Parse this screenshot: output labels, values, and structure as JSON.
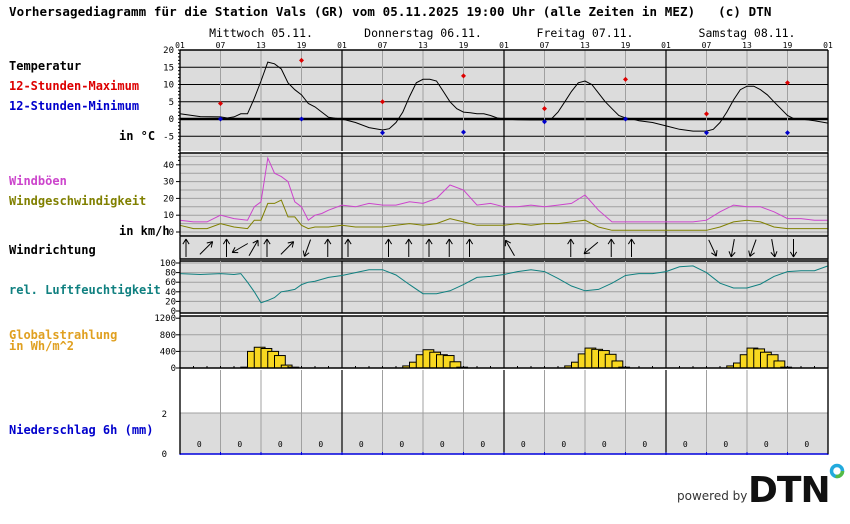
{
  "header": {
    "title": "Vorhersagediagramm für die Station Vals (GR) vom 05.11.2025 19:00 Uhr (alle Zeiten in MEZ)   (c) DTN"
  },
  "days": [
    {
      "label": "Mittwoch 05.11."
    },
    {
      "label": "Donnerstag 06.11."
    },
    {
      "label": "Freitag 07.11."
    },
    {
      "label": "Samstag 08.11."
    }
  ],
  "hour_ticks": [
    "01",
    "07",
    "13",
    "19",
    "01",
    "07",
    "13",
    "19",
    "01",
    "07",
    "13",
    "19",
    "01",
    "07",
    "13",
    "19",
    "01"
  ],
  "labels": {
    "temperature": "Temperatur",
    "max": "12-Stunden-Maximum",
    "min": "12-Stunden-Minimum",
    "temp_unit": "in °C",
    "gusts": "Windböen",
    "wind_speed": "Windgeschwindigkeit",
    "wind_unit": "in km/h",
    "wind_dir": "Windrichtung",
    "humidity": "rel. Luftfeuchtigkeit",
    "radiation": "Globalstrahlung\nin Wh/m^2",
    "precip": "Niederschlag 6h (mm)"
  },
  "colors": {
    "panel_bg": "#dcdcdc",
    "grid_day": "#000000",
    "grid_6h": "#a0a0a0",
    "temp_line": "#000000",
    "max_marker": "#dd0000",
    "min_marker": "#0000cc",
    "gust_line": "#cc44cc",
    "wind_line": "#808000",
    "humidity_line": "#108080",
    "radiation_bar": "#f8d820",
    "precip_axis": "#0000dd",
    "label_temp": "#000000",
    "label_max": "#dd0000",
    "label_min": "#0000cc",
    "label_gust": "#cc44cc",
    "label_wind": "#808000",
    "label_hum": "#108080",
    "label_rad": "#e0a020",
    "label_precip": "#0000cc"
  },
  "footer": {
    "powered_by": "powered by",
    "logo_text": "DTN"
  },
  "chart_data": [
    {
      "type": "line",
      "title": "Temperatur",
      "ylabel": "in °C",
      "ylim": [
        -10,
        20
      ],
      "yticks": [
        20,
        15,
        10,
        5,
        0,
        -5
      ],
      "x_hours_from_start": [
        0,
        3,
        6,
        7,
        8,
        9,
        10,
        11,
        12,
        13,
        14,
        15,
        16,
        17,
        18,
        19,
        20,
        21,
        22,
        23,
        24,
        26,
        28,
        30,
        31,
        32,
        33,
        34,
        35,
        36,
        37,
        38,
        39,
        40,
        41,
        42,
        43,
        44,
        45,
        46,
        47,
        48,
        50,
        52,
        54,
        55,
        56,
        57,
        58,
        59,
        60,
        61,
        62,
        63,
        64,
        65,
        66,
        67,
        68,
        70,
        72,
        74,
        76,
        78,
        79,
        80,
        81,
        82,
        83,
        84,
        85,
        86,
        87,
        88,
        89,
        90,
        91,
        92,
        94,
        96
      ],
      "series": [
        {
          "name": "Temperatur",
          "values": [
            1.5,
            0.7,
            0.6,
            0.3,
            0.6,
            1.5,
            1.5,
            6,
            11,
            16.5,
            16,
            14.5,
            10.5,
            8.5,
            7,
            4.5,
            3.5,
            2,
            0.5,
            0.2,
            0,
            -1,
            -2.5,
            -3.2,
            -2.8,
            -1,
            2,
            6.5,
            10.5,
            11.5,
            11.5,
            11,
            8,
            5,
            3,
            2,
            1.8,
            1.5,
            1.5,
            1,
            0.3,
            0,
            -0.2,
            -0.3,
            -0.3,
            0,
            2,
            5,
            8,
            10.5,
            11,
            10,
            7.5,
            5,
            3,
            1,
            0.3,
            0,
            -0.5,
            -1,
            -2,
            -3,
            -3.5,
            -3.5,
            -3,
            -1,
            2,
            5.5,
            8.5,
            9.5,
            9.5,
            8.5,
            7,
            5,
            3,
            1,
            0,
            0,
            -0.5,
            -1.2
          ]
        }
      ],
      "max_markers": [
        {
          "hour": 6,
          "value": 4.5
        },
        {
          "hour": 18,
          "value": 17
        },
        {
          "hour": 30,
          "value": 5
        },
        {
          "hour": 42,
          "value": 12.5
        },
        {
          "hour": 54,
          "value": 3
        },
        {
          "hour": 66,
          "value": 11.5
        },
        {
          "hour": 78,
          "value": 1.5
        },
        {
          "hour": 90,
          "value": 10.5
        }
      ],
      "min_markers": [
        {
          "hour": 6,
          "value": 0
        },
        {
          "hour": 18,
          "value": 0
        },
        {
          "hour": 30,
          "value": -4
        },
        {
          "hour": 42,
          "value": -3.8
        },
        {
          "hour": 54,
          "value": -0.8
        },
        {
          "hour": 66,
          "value": 0
        },
        {
          "hour": 78,
          "value": -4
        },
        {
          "hour": 90,
          "value": -4
        }
      ]
    },
    {
      "type": "line",
      "title": "Wind",
      "ylabel": "in km/h",
      "ylim": [
        0,
        45
      ],
      "yticks": [
        40,
        30,
        20,
        10,
        0
      ],
      "x_hours_from_start": [
        0,
        2,
        4,
        6,
        8,
        10,
        11,
        12,
        13,
        14,
        15,
        16,
        17,
        18,
        19,
        20,
        21,
        22,
        24,
        26,
        28,
        30,
        32,
        34,
        36,
        38,
        40,
        42,
        44,
        46,
        48,
        50,
        52,
        54,
        56,
        58,
        60,
        62,
        64,
        66,
        68,
        70,
        72,
        74,
        76,
        78,
        80,
        82,
        84,
        86,
        88,
        90,
        92,
        94,
        96
      ],
      "series": [
        {
          "name": "Windböen",
          "values": [
            7,
            6,
            6,
            10,
            8,
            7,
            15,
            18,
            44,
            35,
            33,
            30,
            18,
            15,
            7,
            10,
            11,
            13,
            16,
            15,
            17,
            16,
            16,
            18,
            17,
            20,
            28,
            25,
            16,
            17,
            15,
            15,
            16,
            15,
            16,
            17,
            22,
            13,
            6,
            6,
            6,
            6,
            6,
            6,
            6,
            7,
            12,
            16,
            15,
            15,
            12,
            8,
            8,
            7,
            7
          ]
        },
        {
          "name": "Windgeschwindigkeit",
          "values": [
            4,
            2,
            2,
            5,
            3,
            2,
            7,
            7,
            17,
            17,
            19,
            9,
            9,
            4,
            2,
            3,
            3,
            3,
            4,
            3,
            3,
            3,
            4,
            5,
            4,
            5,
            8,
            6,
            4,
            4,
            4,
            5,
            4,
            5,
            5,
            6,
            7,
            3,
            1,
            1,
            1,
            1,
            1,
            1,
            1,
            1,
            3,
            6,
            7,
            6,
            3,
            2,
            2,
            2,
            2
          ]
        }
      ]
    },
    {
      "type": "table",
      "title": "Windrichtung",
      "hours": [
        0,
        3,
        6,
        8,
        10,
        12,
        15,
        18,
        21,
        24,
        30,
        33,
        36,
        39,
        42,
        48,
        57,
        60,
        63,
        66,
        78,
        81,
        84,
        87,
        90
      ],
      "direction_deg_toward": [
        0,
        45,
        0,
        240,
        30,
        0,
        45,
        200,
        0,
        0,
        0,
        0,
        0,
        0,
        0,
        330,
        0,
        230,
        0,
        0,
        155,
        190,
        200,
        170,
        180
      ]
    },
    {
      "type": "line",
      "title": "rel. Luftfeuchtigkeit",
      "ylim": [
        0,
        100
      ],
      "yticks": [
        100,
        80,
        60,
        40,
        20,
        0
      ],
      "x_hours_from_start": [
        0,
        3,
        6,
        8,
        9,
        10,
        11,
        12,
        13,
        14,
        15,
        16,
        17,
        18,
        19,
        20,
        22,
        24,
        26,
        28,
        30,
        32,
        34,
        36,
        38,
        40,
        42,
        44,
        46,
        48,
        50,
        52,
        54,
        56,
        58,
        60,
        62,
        64,
        66,
        68,
        70,
        72,
        74,
        76,
        78,
        80,
        82,
        84,
        86,
        88,
        90,
        92,
        94,
        96
      ],
      "series": [
        {
          "name": "rel. Luftfeuchtigkeit",
          "values": [
            78,
            76,
            78,
            76,
            78,
            60,
            40,
            17,
            22,
            28,
            40,
            42,
            45,
            55,
            60,
            62,
            70,
            74,
            80,
            86,
            86,
            75,
            55,
            36,
            36,
            42,
            55,
            70,
            72,
            76,
            82,
            86,
            82,
            68,
            52,
            42,
            45,
            58,
            74,
            78,
            78,
            82,
            92,
            94,
            80,
            58,
            48,
            48,
            56,
            72,
            82,
            84,
            84,
            94
          ]
        }
      ]
    },
    {
      "type": "bar",
      "title": "Globalstrahlung in Wh/m^2",
      "ylim": [
        0,
        1200
      ],
      "yticks": [
        1200,
        800,
        400,
        0
      ],
      "bar_hours": [
        9,
        10,
        11,
        12,
        13,
        14,
        15,
        16,
        33,
        34,
        35,
        36,
        37,
        38,
        39,
        40,
        41,
        57,
        58,
        59,
        60,
        61,
        62,
        63,
        64,
        65,
        81,
        82,
        83,
        84,
        85,
        86,
        87,
        88,
        89
      ],
      "values": [
        20,
        400,
        500,
        470,
        400,
        300,
        70,
        20,
        50,
        140,
        320,
        440,
        380,
        320,
        300,
        150,
        20,
        50,
        140,
        340,
        480,
        450,
        420,
        330,
        170,
        20,
        50,
        120,
        320,
        480,
        460,
        380,
        320,
        170,
        20
      ]
    },
    {
      "type": "bar",
      "title": "Niederschlag 6h (mm)",
      "ylim": [
        0,
        5
      ],
      "yticks": [
        2,
        0
      ],
      "categories": [
        "01-07",
        "07-13",
        "13-19",
        "19-01",
        "01-07",
        "07-13",
        "13-19",
        "19-01",
        "01-07",
        "07-13",
        "13-19",
        "19-01",
        "01-07",
        "07-13",
        "13-19",
        "19-01"
      ],
      "values": [
        0,
        0,
        0,
        0,
        0,
        0,
        0,
        0,
        0,
        0,
        0,
        0,
        0,
        0,
        0,
        0
      ]
    }
  ]
}
